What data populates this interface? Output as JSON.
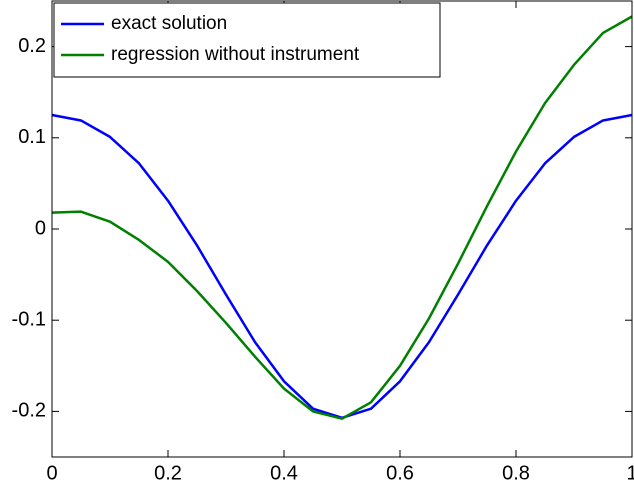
{
  "chart_data": {
    "type": "line",
    "x": [
      0,
      0.05,
      0.1,
      0.15,
      0.2,
      0.25,
      0.3,
      0.35,
      0.4,
      0.45,
      0.5,
      0.55,
      0.6,
      0.65,
      0.7,
      0.75,
      0.8,
      0.85,
      0.9,
      0.95,
      1
    ],
    "series": [
      {
        "name": "exact solution",
        "color": "#0000ff",
        "values": [
          0.125,
          0.119,
          0.101,
          0.072,
          0.031,
          -0.018,
          -0.072,
          -0.124,
          -0.167,
          -0.197,
          -0.207,
          -0.197,
          -0.167,
          -0.124,
          -0.072,
          -0.018,
          0.031,
          0.072,
          0.101,
          0.119,
          0.125
        ]
      },
      {
        "name": "regression without instrument",
        "color": "#008000",
        "values": [
          0.018,
          0.019,
          0.008,
          -0.012,
          -0.036,
          -0.068,
          -0.103,
          -0.14,
          -0.175,
          -0.2,
          -0.208,
          -0.19,
          -0.15,
          -0.098,
          -0.038,
          0.025,
          0.085,
          0.138,
          0.18,
          0.215,
          0.233
        ]
      }
    ],
    "xlim": [
      0,
      1
    ],
    "xticks": [
      0,
      0.2,
      0.4,
      0.6,
      0.8,
      1
    ],
    "ylim": [
      -0.25,
      0.25
    ],
    "yticks": [
      -0.2,
      -0.1,
      0,
      0.1,
      0.2
    ],
    "legend": "northwest"
  }
}
